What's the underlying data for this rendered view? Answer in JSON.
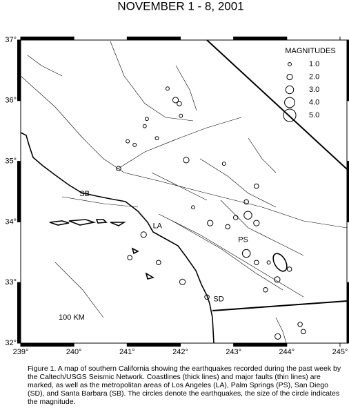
{
  "map": {
    "title": "NOVEMBER 1 - 8, 2001",
    "xlim": [
      239,
      245.13
    ],
    "ylim": [
      32,
      37
    ],
    "xticks": [
      {
        "value": 239,
        "label": "239°"
      },
      {
        "value": 240,
        "label": "240°"
      },
      {
        "value": 241,
        "label": "241°"
      },
      {
        "value": 242,
        "label": "242°"
      },
      {
        "value": 243,
        "label": "243°"
      },
      {
        "value": 244,
        "label": "244°"
      },
      {
        "value": 245,
        "label": "245°"
      }
    ],
    "yticks": [
      {
        "value": 32,
        "label": "32°"
      },
      {
        "value": 33,
        "label": "33°"
      },
      {
        "value": 34,
        "label": "34°"
      },
      {
        "value": 35,
        "label": "35°"
      },
      {
        "value": 36,
        "label": "36°"
      },
      {
        "value": 37,
        "label": "37°"
      }
    ],
    "legend": {
      "title": "MAGNITUDES",
      "sizes": [
        {
          "value": 1,
          "label": "1.0"
        },
        {
          "value": 2,
          "label": "2.0"
        },
        {
          "value": 3,
          "label": "3.0"
        },
        {
          "value": 4,
          "label": "4.0"
        },
        {
          "value": 5,
          "label": "5.0"
        }
      ]
    },
    "places": [
      {
        "label": "SB",
        "lon": 240.2,
        "lat": 34.46
      },
      {
        "label": "LA",
        "lon": 241.57,
        "lat": 33.93
      },
      {
        "label": "PS",
        "lon": 243.18,
        "lat": 33.7
      },
      {
        "label": "SD",
        "lon": 242.72,
        "lat": 32.72
      }
    ],
    "scale_label": "100 KM",
    "quakes": {
      "lon": [
        241.91,
        241.98,
        241.76,
        241.01,
        241.14,
        240.84,
        242.11,
        242.82,
        243.43,
        243.24,
        243.27,
        243.43,
        242.56,
        242.89,
        243.24,
        243.43,
        243.66,
        244.05,
        243.82,
        243.6,
        242.04,
        241.31,
        241.05,
        241.59,
        244.25,
        243.83,
        244.31,
        242.5,
        242.24,
        241.33,
        241.56,
        242.01,
        241.37,
        243.04
      ],
      "lat": [
        36.01,
        35.95,
        36.2,
        35.33,
        35.27,
        34.88,
        35.02,
        34.96,
        34.59,
        34.33,
        34.11,
        33.98,
        33.98,
        33.92,
        33.48,
        33.33,
        33.33,
        33.22,
        33.05,
        32.88,
        33.01,
        33.79,
        33.41,
        33.33,
        32.31,
        32.11,
        32.19,
        32.76,
        34.24,
        35.58,
        35.38,
        35.75,
        35.7,
        34.07
      ],
      "mag": [
        2.0,
        1.5,
        1.0,
        1.0,
        1.0,
        1.5,
        2.0,
        1.0,
        1.5,
        1.5,
        3.0,
        2.0,
        2.0,
        1.5,
        3.0,
        1.5,
        1.0,
        1.5,
        2.0,
        1.5,
        2.0,
        2.0,
        1.5,
        1.5,
        1.5,
        2.0,
        1.5,
        1.5,
        1.0,
        1.0,
        1.0,
        1.0,
        1.0,
        1.5
      ]
    },
    "caption": "Figure 1. A map of southern California showing the earthquakes recorded during the past week by the Caltech/USGS Seismic Network.  Coastlines (thick lines) and major faults (thin lines) are marked, as well as the metropolitan areas of Los Angeles (LA), Palm Springs (PS), San Diego (SD), and Santa Barbara (SB).  The circles denote the earthquakes, the size of the circle indicates the magnitude."
  }
}
